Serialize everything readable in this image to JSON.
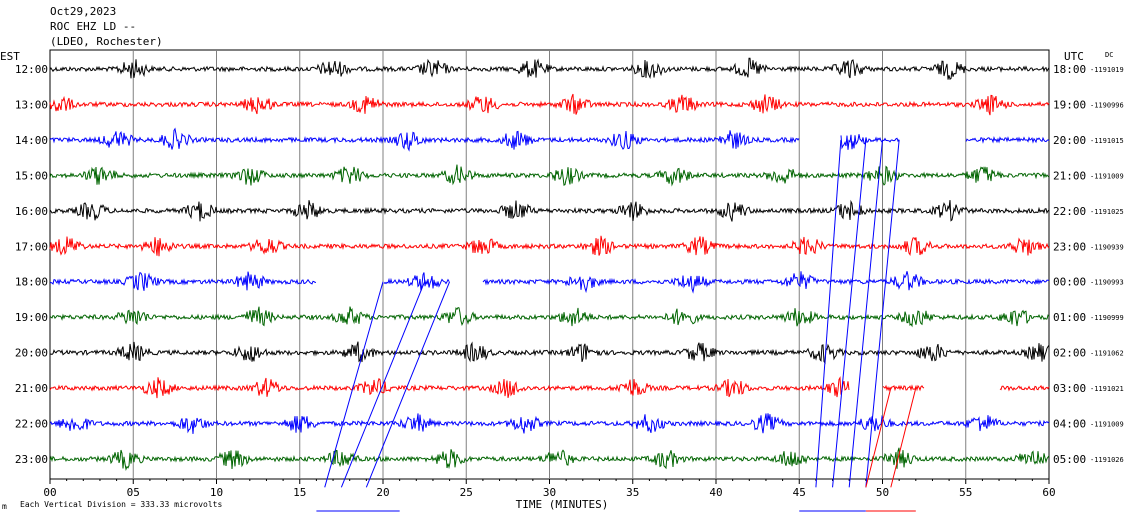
{
  "header": {
    "date": "Oct29,2023",
    "station": "ROC EHZ LD --",
    "network": "(LDEO, Rochester)"
  },
  "footer": {
    "mark": "m",
    "scale_note": "Each Vertical Division =  333.33 microvolts"
  },
  "chart_data": {
    "type": "line",
    "subtype": "helicorder",
    "title": "",
    "xlabel": "TIME (MINUTES)",
    "left_axis_label": "EST",
    "right_axis_label": "UTC",
    "dc_label": "DC",
    "xlim": [
      0,
      60
    ],
    "x_ticks": [
      "00",
      "05",
      "10",
      "15",
      "20",
      "25",
      "30",
      "35",
      "40",
      "45",
      "50",
      "55",
      "60"
    ],
    "grid": "vertical-every-5-min",
    "trace_colors": [
      "#000000",
      "#ff0000",
      "#0000ff",
      "#006400"
    ],
    "gap_color": "#0000ff",
    "rows": [
      {
        "est": "12:00",
        "utc": "18:00",
        "dc": "-1191019",
        "bursts": [
          5,
          17,
          23,
          29,
          36,
          42,
          48,
          54
        ]
      },
      {
        "est": "13:00",
        "utc": "19:00",
        "dc": "-1190996",
        "bursts": [
          0.5,
          12.5,
          19,
          26,
          31.5,
          38,
          43,
          56.5
        ]
      },
      {
        "est": "14:00",
        "utc": "20:00",
        "dc": "-1191015",
        "bursts": [
          4,
          7.5,
          21.5,
          28,
          34.5,
          41,
          48
        ],
        "gaps": [
          [
            45,
            47.5
          ],
          [
            51,
            55
          ]
        ]
      },
      {
        "est": "15:00",
        "utc": "21:00",
        "dc": "-1191009",
        "bursts": [
          3,
          12,
          18,
          24.5,
          31,
          37.5,
          44,
          50,
          56
        ]
      },
      {
        "est": "16:00",
        "utc": "22:00",
        "dc": "-1191025",
        "bursts": [
          2.5,
          9,
          15.5,
          28,
          35,
          41,
          48,
          54
        ]
      },
      {
        "est": "17:00",
        "utc": "23:00",
        "dc": "-1190939",
        "bursts": [
          1,
          6.5,
          13,
          26,
          33,
          39,
          45.5,
          52,
          58.5
        ]
      },
      {
        "est": "18:00",
        "utc": "00:00",
        "dc": "-1190993",
        "bursts": [
          5.5,
          12,
          22.5,
          32,
          38.5,
          45,
          51.5
        ],
        "gaps": [
          [
            16,
            20
          ],
          [
            24,
            26
          ]
        ]
      },
      {
        "est": "19:00",
        "utc": "01:00",
        "dc": "-1190999",
        "bursts": [
          5,
          12.5,
          18,
          24.5,
          31.5,
          38,
          45,
          52,
          58
        ]
      },
      {
        "est": "20:00",
        "utc": "02:00",
        "dc": "-1191062",
        "bursts": [
          5,
          12,
          18.5,
          25.5,
          32,
          39,
          46.5,
          53,
          59.5
        ]
      },
      {
        "est": "21:00",
        "utc": "03:00",
        "dc": "-1191021",
        "bursts": [
          6.5,
          13,
          19.5,
          27.5,
          35,
          41,
          47.5
        ],
        "gaps": [
          [
            48,
            50
          ],
          [
            52.5,
            57
          ]
        ]
      },
      {
        "est": "22:00",
        "utc": "04:00",
        "dc": "-1191009",
        "bursts": [
          1.5,
          8.5,
          15,
          22,
          28.5,
          36,
          43,
          49.5,
          56
        ]
      },
      {
        "est": "23:00",
        "utc": "05:00",
        "dc": "-1191026",
        "bursts": [
          4.5,
          11,
          17.5,
          24,
          30.5,
          37,
          44.5,
          51,
          59
        ]
      }
    ],
    "slant_lines": [
      {
        "color": "#0000ff",
        "from_row": 6,
        "from_x": 20,
        "to_row": 11.8,
        "to_x": 16.5
      },
      {
        "color": "#0000ff",
        "from_row": 6,
        "from_x": 22.5,
        "to_row": 11.8,
        "to_x": 17.5
      },
      {
        "color": "#0000ff",
        "from_row": 6,
        "from_x": 24,
        "to_row": 11.8,
        "to_x": 19
      },
      {
        "color": "#0000ff",
        "from_row": 2,
        "from_x": 47.5,
        "to_row": 11.8,
        "to_x": 46
      },
      {
        "color": "#0000ff",
        "from_row": 2,
        "from_x": 49,
        "to_row": 11.8,
        "to_x": 47
      },
      {
        "color": "#0000ff",
        "from_row": 2,
        "from_x": 50,
        "to_row": 11.8,
        "to_x": 48
      },
      {
        "color": "#0000ff",
        "from_row": 2,
        "from_x": 51,
        "to_row": 11.8,
        "to_x": 49
      },
      {
        "color": "#ff0000",
        "from_row": 9,
        "from_x": 50.5,
        "to_row": 11.8,
        "to_x": 49
      },
      {
        "color": "#ff0000",
        "from_row": 9,
        "from_x": 52,
        "to_row": 11.8,
        "to_x": 50.5
      }
    ]
  }
}
